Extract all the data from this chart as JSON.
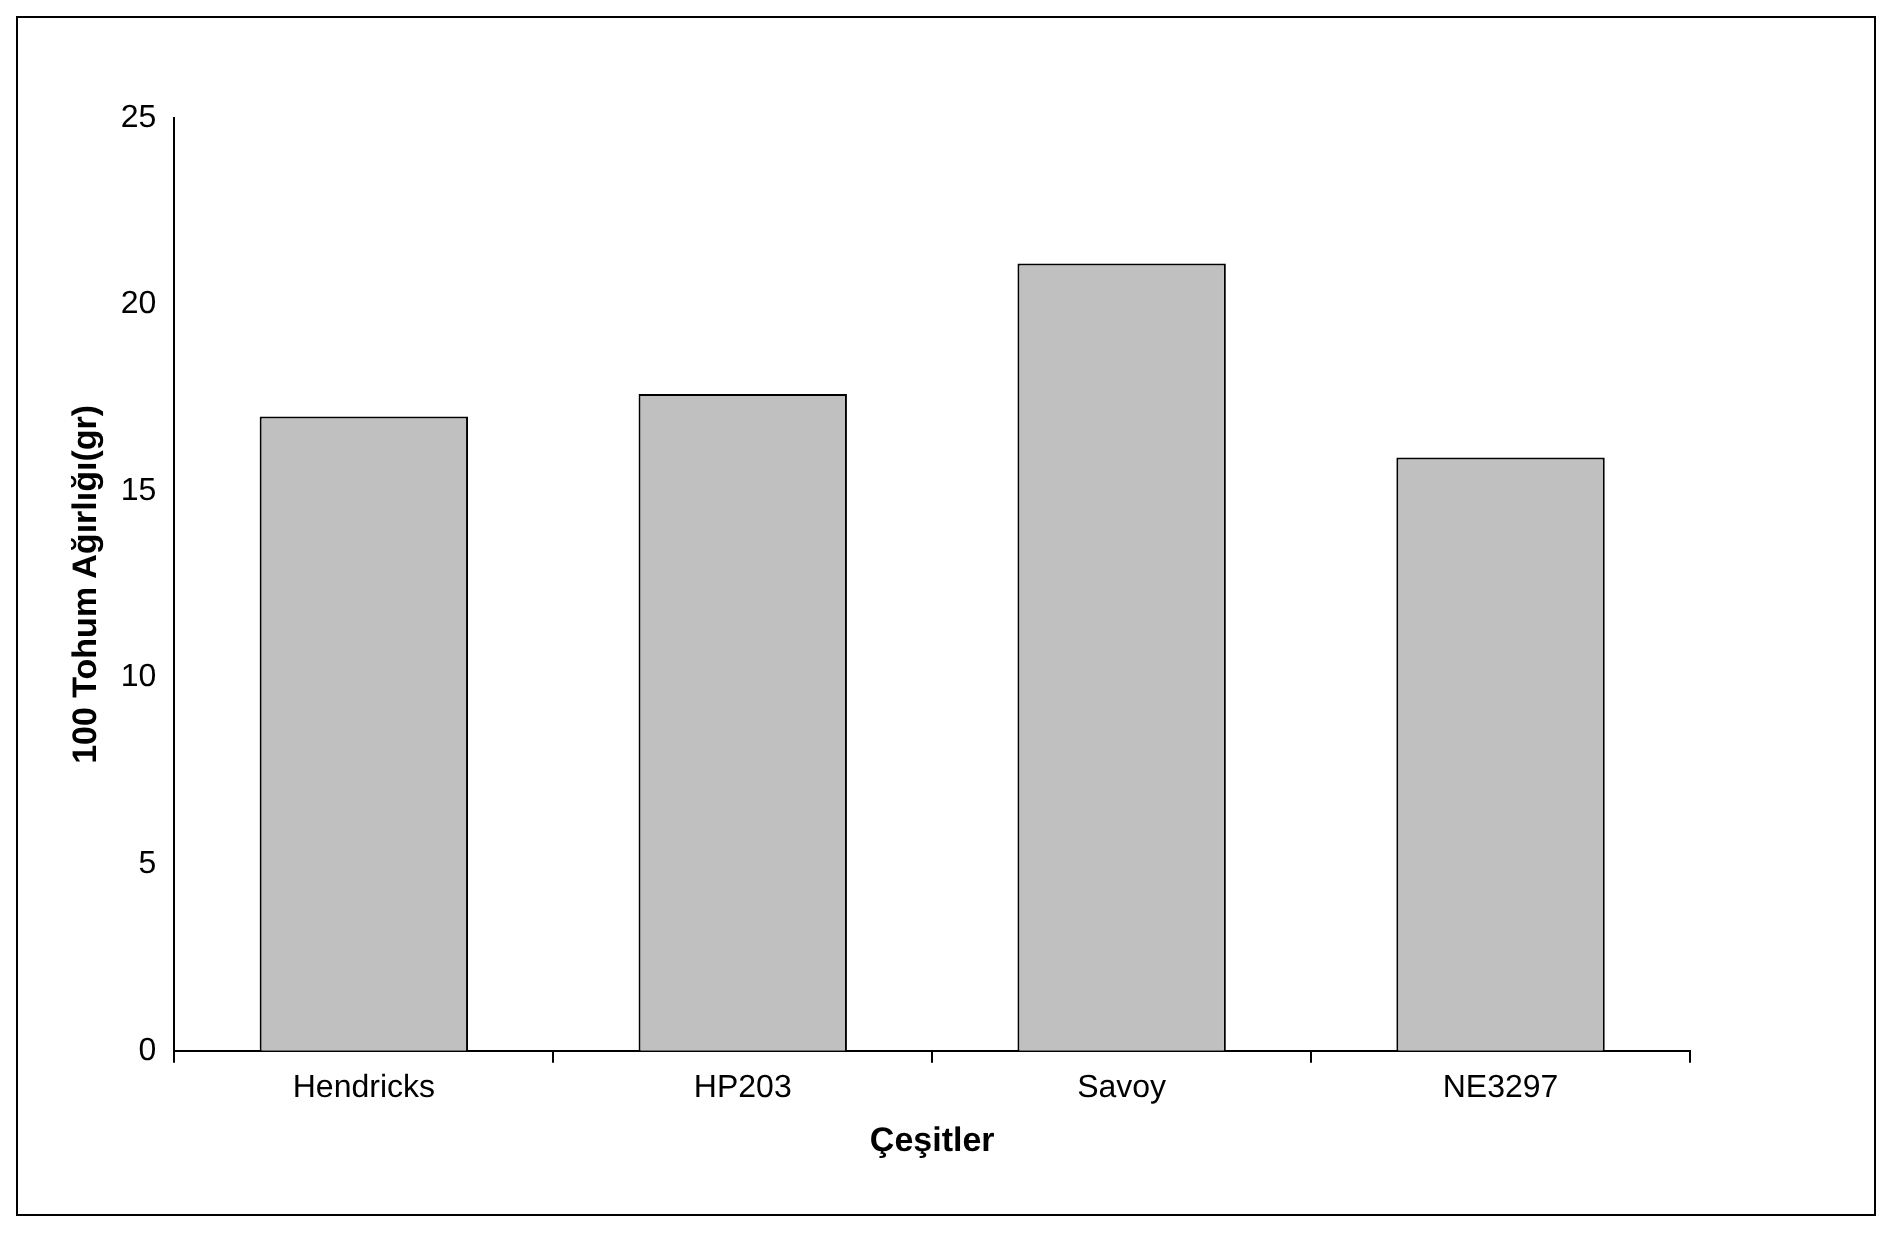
{
  "chart_data": {
    "type": "bar",
    "xlabel": "Çeşitler",
    "ylabel": "100 Tohum Ağırlığı(gr)",
    "categories": [
      "Hendricks",
      "HP203",
      "Savoy",
      "NE3297"
    ],
    "values": [
      17,
      17.6,
      21.1,
      15.9
    ],
    "color": "#c0c0c0",
    "ylim": [
      0,
      25
    ],
    "yticks": [
      0,
      5,
      10,
      15,
      20,
      25
    ],
    "grid": false,
    "legend": false
  }
}
